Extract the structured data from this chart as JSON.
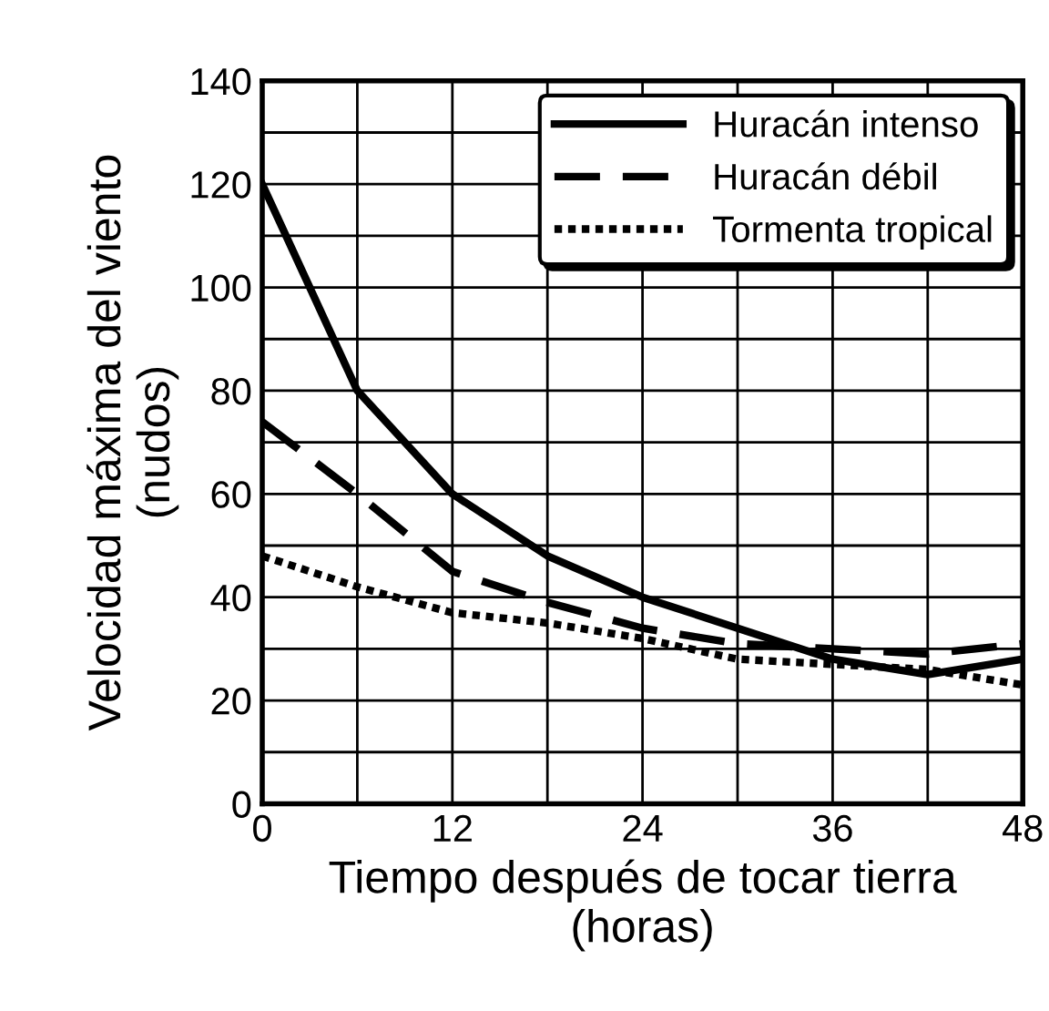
{
  "chart_data": {
    "type": "line",
    "xlabel": "Tiempo después de tocar tierra\n(horas)",
    "ylabel": "Velocidad máxima del viento\n(nudos)",
    "x": [
      0,
      6,
      12,
      18,
      24,
      30,
      36,
      42,
      48
    ],
    "series": [
      {
        "name": "Huracán intenso",
        "color": "#000000",
        "line_style": "solid",
        "values": [
          120,
          80,
          60,
          48,
          40,
          34,
          28,
          25,
          28
        ]
      },
      {
        "name": "Huracán débil",
        "color": "#000000",
        "line_style": "dashed",
        "values": [
          74,
          60,
          45,
          39,
          34,
          31,
          30,
          29,
          31
        ]
      },
      {
        "name": "Tormenta tropical",
        "color": "#000000",
        "line_style": "dotted",
        "values": [
          48,
          42,
          37,
          35,
          32,
          28,
          27,
          26,
          23
        ]
      }
    ],
    "xlim": [
      0,
      48
    ],
    "ylim": [
      0,
      140
    ],
    "xticks": [
      0,
      {
        "value": 6,
        "label": null
      },
      12,
      {
        "value": 18,
        "label": null
      },
      24,
      {
        "value": 30,
        "label": null
      },
      36,
      {
        "value": 42,
        "label": null
      },
      48
    ],
    "yticks": [
      0,
      {
        "value": 10,
        "label": null
      },
      20,
      {
        "value": 30,
        "label": null
      },
      40,
      {
        "value": 50,
        "label": null
      },
      60,
      {
        "value": 70,
        "label": null
      },
      80,
      {
        "value": 90,
        "label": null
      },
      100,
      {
        "value": 110,
        "label": null
      },
      120,
      {
        "value": 130,
        "label": null
      },
      140
    ],
    "grid": true,
    "legend": "top right",
    "marker": "none"
  }
}
